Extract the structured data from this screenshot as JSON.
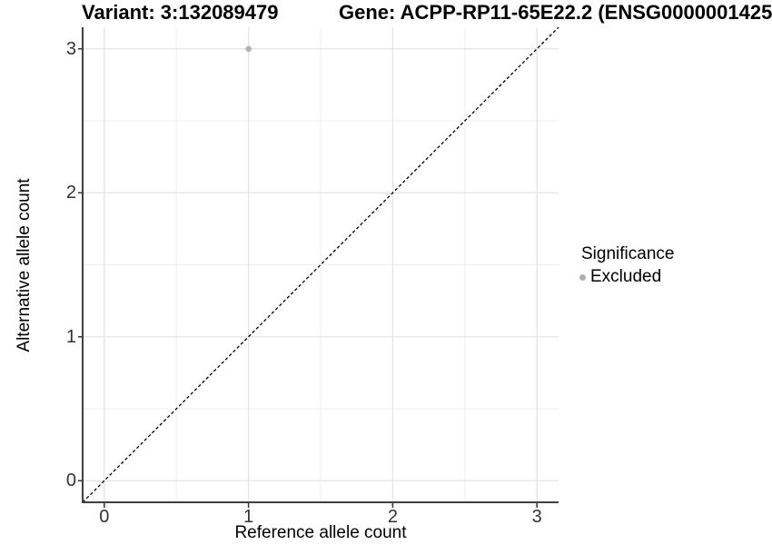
{
  "titles": {
    "variant": "Variant: 3:132089479",
    "gene": "Gene: ACPP-RP11-65E22.2 (ENSG0000001425"
  },
  "axes": {
    "x_label": "Reference allele count",
    "y_label": "Alternative allele count"
  },
  "legend": {
    "title": "Significance",
    "items": [
      {
        "label": "Excluded",
        "color": "#b0b0b0"
      }
    ]
  },
  "chart_data": {
    "type": "scatter",
    "title": "Variant: 3:132089479",
    "subtitle": "Gene: ACPP-RP11-65E22.2 (ENSG0000001425",
    "xlabel": "Reference allele count",
    "ylabel": "Alternative allele count",
    "xlim": [
      -0.15,
      3.15
    ],
    "ylim": [
      -0.15,
      3.15
    ],
    "x_ticks": [
      0,
      1,
      2,
      3
    ],
    "y_ticks": [
      0,
      1,
      2,
      3
    ],
    "x_minor_ticks": [
      0.5,
      1.5,
      2.5
    ],
    "y_minor_ticks": [
      0.5,
      1.5,
      2.5
    ],
    "grid": true,
    "legend_position": "right",
    "identity_line": {
      "shown": true,
      "style": "dashed",
      "color": "#000000",
      "from": [
        -0.15,
        -0.15
      ],
      "to": [
        3.15,
        3.15
      ]
    },
    "series": [
      {
        "name": "Excluded",
        "points": [
          {
            "x": 1,
            "y": 3
          }
        ],
        "color": "#b3b3b3"
      }
    ],
    "colors": {
      "grid_major": "#e4e4e4",
      "grid_minor": "#efefef",
      "axis_line": "#404040",
      "tick_mark": "#333333",
      "tick_label": "#333333"
    }
  }
}
